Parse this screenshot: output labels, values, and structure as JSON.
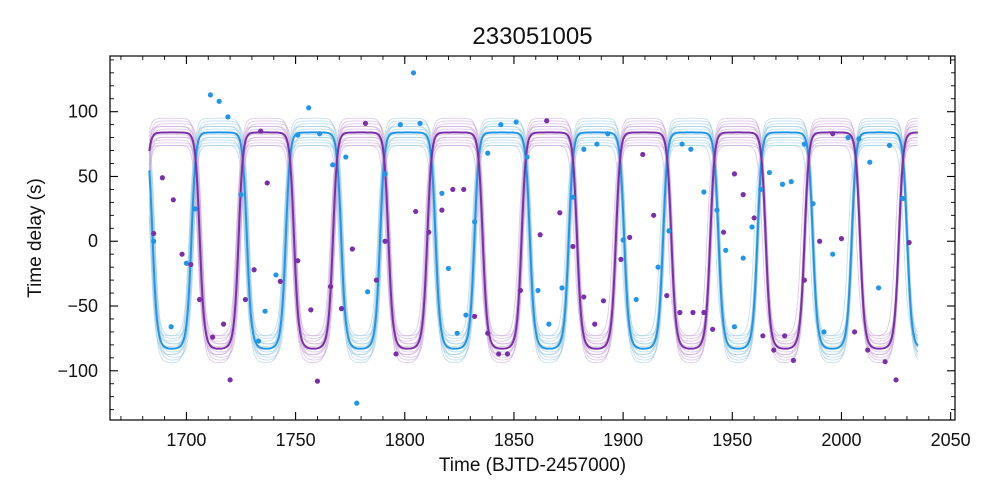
{
  "chart_data": {
    "type": "scatter",
    "title": "233051005",
    "xlabel": "Time (BJTD-2457000)",
    "ylabel": "Time delay (s)",
    "xlim": [
      1665,
      2052
    ],
    "ylim": [
      -138,
      143
    ],
    "xticks": [
      1700,
      1750,
      1800,
      1850,
      1900,
      1950,
      2000,
      2050
    ],
    "xtick_labels": [
      "1700",
      "1750",
      "1800",
      "1850",
      "1900",
      "1950",
      "2000",
      "2050"
    ],
    "yticks": [
      -100,
      -50,
      0,
      50,
      100
    ],
    "ytick_labels": [
      "−100",
      "−50",
      "0",
      "50",
      "100"
    ],
    "grid": false,
    "legend": false,
    "colors": {
      "blue": "#2196e8",
      "purple": "#7b2fa8",
      "blue_samples": "#9ecae1",
      "purple_samples": "#c8a8d8"
    },
    "model": {
      "period": 43.2,
      "x_range": [
        1683,
        2035
      ],
      "series": [
        {
          "color_key": "blue",
          "amplitude": 84,
          "phase_ref": 1715,
          "shape": 3.5,
          "y_offset": 0
        },
        {
          "color_key": "purple",
          "amplitude": 84,
          "phase_ref": 1693.4,
          "shape": 3.5,
          "y_offset": 0
        }
      ]
    },
    "series": [
      {
        "color_key": "blue",
        "points": [
          [
            1685,
            0
          ],
          [
            1693,
            -66
          ],
          [
            1700,
            -17
          ],
          [
            1704,
            25
          ],
          [
            1711,
            113
          ],
          [
            1715,
            108
          ],
          [
            1719,
            96
          ],
          [
            1725,
            36
          ],
          [
            1733,
            -77
          ],
          [
            1736,
            -54
          ],
          [
            1741,
            -26
          ],
          [
            1751,
            82
          ],
          [
            1756,
            103
          ],
          [
            1761,
            83
          ],
          [
            1767,
            59
          ],
          [
            1773,
            65
          ],
          [
            1778,
            -125
          ],
          [
            1783,
            -39
          ],
          [
            1791,
            52
          ],
          [
            1798,
            90
          ],
          [
            1804,
            130
          ],
          [
            1807,
            91
          ],
          [
            1817,
            37
          ],
          [
            1820,
            -21
          ],
          [
            1824,
            -71
          ],
          [
            1828,
            -57
          ],
          [
            1832,
            15
          ],
          [
            1838,
            68
          ],
          [
            1844,
            90
          ],
          [
            1851,
            92
          ],
          [
            1856,
            65
          ],
          [
            1861,
            -38
          ],
          [
            1866,
            -64
          ],
          [
            1872,
            -36
          ],
          [
            1877,
            34
          ],
          [
            1882,
            71
          ],
          [
            1888,
            75
          ],
          [
            1893,
            83
          ],
          [
            1900,
            1
          ],
          [
            1906,
            -45
          ],
          [
            1916,
            -20
          ],
          [
            1921,
            8
          ],
          [
            1927,
            75
          ],
          [
            1931,
            71
          ],
          [
            1937,
            38
          ],
          [
            1943,
            24
          ],
          [
            1947,
            -7
          ],
          [
            1951,
            -66
          ],
          [
            1955,
            -13
          ],
          [
            1959,
            11
          ],
          [
            1963,
            40
          ],
          [
            1967,
            53
          ],
          [
            1973,
            44
          ],
          [
            1977,
            46
          ],
          [
            1983,
            75
          ],
          [
            1987,
            29
          ],
          [
            1992,
            -70
          ],
          [
            1996,
            -10
          ],
          [
            2003,
            80
          ],
          [
            2008,
            79
          ],
          [
            2013,
            61
          ],
          [
            2017,
            -36
          ],
          [
            2022,
            74
          ],
          [
            2028,
            33
          ]
        ]
      },
      {
        "color_key": "purple",
        "points": [
          [
            1685,
            6
          ],
          [
            1689,
            49
          ],
          [
            1694,
            32
          ],
          [
            1698,
            -10
          ],
          [
            1702,
            -18
          ],
          [
            1706,
            -45
          ],
          [
            1712,
            -74
          ],
          [
            1717,
            -64
          ],
          [
            1720,
            -107
          ],
          [
            1727,
            -45
          ],
          [
            1731,
            -22
          ],
          [
            1734,
            85
          ],
          [
            1737,
            45
          ],
          [
            1743,
            -31
          ],
          [
            1751,
            -15
          ],
          [
            1757,
            -53
          ],
          [
            1760,
            -108
          ],
          [
            1766,
            -35
          ],
          [
            1771,
            -52
          ],
          [
            1776,
            -6
          ],
          [
            1782,
            91
          ],
          [
            1787,
            -30
          ],
          [
            1791,
            0
          ],
          [
            1796,
            -87
          ],
          [
            1805,
            23
          ],
          [
            1811,
            7
          ],
          [
            1817,
            24
          ],
          [
            1822,
            40
          ],
          [
            1827,
            40
          ],
          [
            1832,
            -58
          ],
          [
            1838,
            -71
          ],
          [
            1843,
            -87
          ],
          [
            1847,
            -87
          ],
          [
            1853,
            -38
          ],
          [
            1862,
            5
          ],
          [
            1865,
            93
          ],
          [
            1871,
            22
          ],
          [
            1877,
            -4
          ],
          [
            1882,
            -43
          ],
          [
            1887,
            -64
          ],
          [
            1891,
            -46
          ],
          [
            1899,
            -14
          ],
          [
            1903,
            3
          ],
          [
            1909,
            67
          ],
          [
            1914,
            20
          ],
          [
            1920,
            -42
          ],
          [
            1926,
            -55
          ],
          [
            1932,
            -55
          ],
          [
            1937,
            -55
          ],
          [
            1941,
            -68
          ],
          [
            1946,
            7
          ],
          [
            1951,
            52
          ],
          [
            1955,
            36
          ],
          [
            1960,
            18
          ],
          [
            1964,
            -73
          ],
          [
            1969,
            -84
          ],
          [
            1974,
            -73
          ],
          [
            1978,
            -92
          ],
          [
            1983,
            -30
          ],
          [
            1990,
            0
          ],
          [
            1996,
            83
          ],
          [
            2000,
            2
          ],
          [
            2006,
            -70
          ],
          [
            2012,
            -84
          ],
          [
            2020,
            -93
          ],
          [
            2025,
            -107
          ],
          [
            2031,
            -1
          ]
        ]
      }
    ]
  }
}
